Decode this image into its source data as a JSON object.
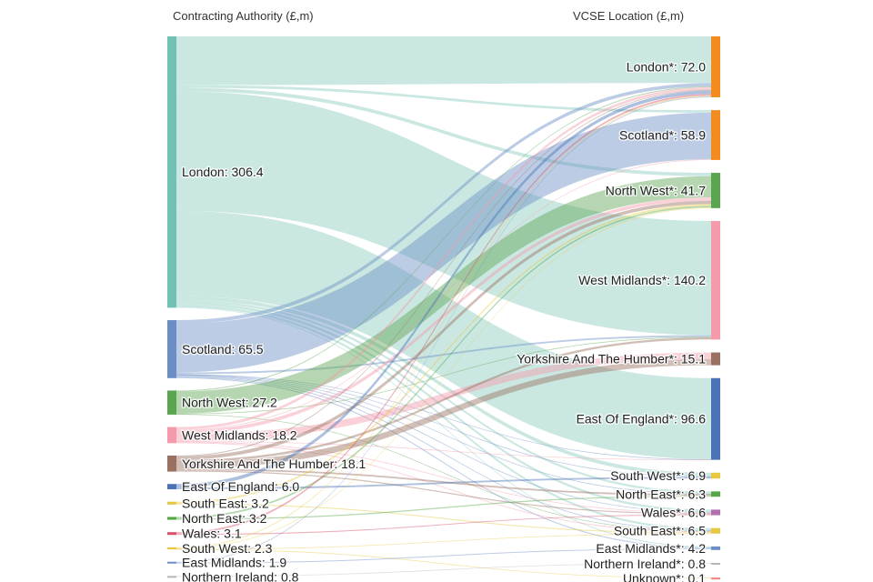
{
  "chart_data": {
    "type": "sankey",
    "units": "£,m",
    "headers": {
      "left": "Contracting Authority (£,m)",
      "right": "VCSE Location (£,m)"
    },
    "colors": {
      "london": "#73c1b4",
      "scotland": "#6b8fc5",
      "north_west": "#5aa550",
      "west_midlands": "#f59aab",
      "yorkshire": "#9a7060",
      "east_of_england": "#4a73b5",
      "south_east": "#e8c840",
      "north_east": "#54a846",
      "wales": "#d95068",
      "south_west": "#e8c840",
      "east_midlands": "#6e8ec8",
      "northern_ireland": "#b8b8b8",
      "orange": "#f28c1e",
      "wales_dest": "#b070b0",
      "unknown": "#f28080"
    },
    "sources": [
      {
        "key": "london",
        "label": "London: 306.4",
        "value": 306.4
      },
      {
        "key": "scotland",
        "label": "Scotland: 65.5",
        "value": 65.5
      },
      {
        "key": "north_west",
        "label": "North West: 27.2",
        "value": 27.2
      },
      {
        "key": "west_midlands",
        "label": "West Midlands: 18.2",
        "value": 18.2
      },
      {
        "key": "yorkshire",
        "label": "Yorkshire And The Humber: 18.1",
        "value": 18.1
      },
      {
        "key": "east_of_england",
        "label": "East Of England: 6.0",
        "value": 6.0
      },
      {
        "key": "south_east",
        "label": "South East: 3.2",
        "value": 3.2
      },
      {
        "key": "north_east",
        "label": "North East: 3.2",
        "value": 3.2
      },
      {
        "key": "wales",
        "label": "Wales: 3.1",
        "value": 3.1
      },
      {
        "key": "south_west",
        "label": "South West: 2.3",
        "value": 2.3
      },
      {
        "key": "east_midlands",
        "label": "East Midlands: 1.9",
        "value": 1.9
      },
      {
        "key": "northern_ireland",
        "label": "Northern Ireland: 0.8",
        "value": 0.8
      }
    ],
    "targets": [
      {
        "key": "london",
        "label": "London*: 72.0",
        "value": 72.0
      },
      {
        "key": "scotland",
        "label": "Scotland*: 58.9",
        "value": 58.9
      },
      {
        "key": "north_west",
        "label": "North West*: 41.7",
        "value": 41.7
      },
      {
        "key": "west_midlands",
        "label": "West Midlands*: 140.2",
        "value": 140.2
      },
      {
        "key": "yorkshire",
        "label": "Yorkshire And The Humber*: 15.1",
        "value": 15.1
      },
      {
        "key": "east_of_england",
        "label": "East Of England*: 96.6",
        "value": 96.6
      },
      {
        "key": "south_west",
        "label": "South West*: 6.9",
        "value": 6.9
      },
      {
        "key": "north_east",
        "label": "North East*: 6.3",
        "value": 6.3
      },
      {
        "key": "wales",
        "label": "Wales*: 6.6",
        "value": 6.6
      },
      {
        "key": "south_east",
        "label": "South East*: 6.5",
        "value": 6.5
      },
      {
        "key": "east_midlands",
        "label": "East Midlands*: 4.2",
        "value": 4.2
      },
      {
        "key": "northern_ireland",
        "label": "Northern Ireland*: 0.8",
        "value": 0.8
      },
      {
        "key": "unknown",
        "label": "Unknown*: 0.1",
        "value": 0.1
      }
    ],
    "links": [
      {
        "source": "london",
        "target": "london",
        "value": 55.0
      },
      {
        "source": "london",
        "target": "scotland",
        "value": 3.0
      },
      {
        "source": "london",
        "target": "north_west",
        "value": 4.0
      },
      {
        "source": "london",
        "target": "west_midlands",
        "value": 135.0
      },
      {
        "source": "london",
        "target": "east_of_england",
        "value": 96.0
      },
      {
        "source": "london",
        "target": "south_west",
        "value": 4.4
      },
      {
        "source": "london",
        "target": "north_east",
        "value": 2.5
      },
      {
        "source": "london",
        "target": "wales",
        "value": 3.0
      },
      {
        "source": "london",
        "target": "south_east",
        "value": 2.5
      },
      {
        "source": "london",
        "target": "east_midlands",
        "value": 1.0
      },
      {
        "source": "scotland",
        "target": "london",
        "value": 4.0
      },
      {
        "source": "scotland",
        "target": "scotland",
        "value": 55.0
      },
      {
        "source": "scotland",
        "target": "west_midlands",
        "value": 2.0
      },
      {
        "source": "scotland",
        "target": "east_of_england",
        "value": 0.3
      },
      {
        "source": "scotland",
        "target": "south_west",
        "value": 0.5
      },
      {
        "source": "scotland",
        "target": "north_east",
        "value": 0.5
      },
      {
        "source": "scotland",
        "target": "wales",
        "value": 1.0
      },
      {
        "source": "scotland",
        "target": "south_east",
        "value": 1.0
      },
      {
        "source": "scotland",
        "target": "east_midlands",
        "value": 1.2
      },
      {
        "source": "north_west",
        "target": "london",
        "value": 1.0
      },
      {
        "source": "north_west",
        "target": "north_west",
        "value": 25.0
      },
      {
        "source": "north_west",
        "target": "south_east",
        "value": 0.6
      },
      {
        "source": "north_west",
        "target": "west_midlands",
        "value": 0.6
      },
      {
        "source": "west_midlands",
        "target": "london",
        "value": 3.0
      },
      {
        "source": "west_midlands",
        "target": "scotland",
        "value": 0.9
      },
      {
        "source": "west_midlands",
        "target": "north_west",
        "value": 4.0
      },
      {
        "source": "west_midlands",
        "target": "yorkshire",
        "value": 8.0
      },
      {
        "source": "west_midlands",
        "target": "east_of_england",
        "value": 0.3
      },
      {
        "source": "west_midlands",
        "target": "wales",
        "value": 1.0
      },
      {
        "source": "west_midlands",
        "target": "south_east",
        "value": 1.0
      },
      {
        "source": "yorkshire",
        "target": "london",
        "value": 1.0
      },
      {
        "source": "yorkshire",
        "target": "north_west",
        "value": 4.0
      },
      {
        "source": "yorkshire",
        "target": "yorkshire",
        "value": 7.1
      },
      {
        "source": "yorkshire",
        "target": "west_midlands",
        "value": 2.6
      },
      {
        "source": "yorkshire",
        "target": "north_east",
        "value": 2.0
      },
      {
        "source": "yorkshire",
        "target": "wales",
        "value": 1.4
      },
      {
        "source": "east_of_england",
        "target": "london",
        "value": 4.0
      },
      {
        "source": "east_of_england",
        "target": "south_west",
        "value": 2.0
      },
      {
        "source": "south_east",
        "target": "north_west",
        "value": 2.0
      },
      {
        "source": "south_east",
        "target": "south_east",
        "value": 1.2
      },
      {
        "source": "north_east",
        "target": "north_west",
        "value": 1.9
      },
      {
        "source": "north_east",
        "target": "north_east",
        "value": 1.3
      },
      {
        "source": "wales",
        "target": "london",
        "value": 2.0
      },
      {
        "source": "wales",
        "target": "wales",
        "value": 1.1
      },
      {
        "source": "south_west",
        "target": "london",
        "value": 1.0
      },
      {
        "source": "south_west",
        "target": "north_west",
        "value": 0.8
      },
      {
        "source": "south_west",
        "target": "south_east",
        "value": 0.2
      },
      {
        "source": "south_west",
        "target": "unknown",
        "value": 0.1
      },
      {
        "source": "east_midlands",
        "target": "london",
        "value": 0.9
      },
      {
        "source": "east_midlands",
        "target": "east_midlands",
        "value": 1.0
      },
      {
        "source": "northern_ireland",
        "target": "northern_ireland",
        "value": 0.8
      }
    ]
  }
}
